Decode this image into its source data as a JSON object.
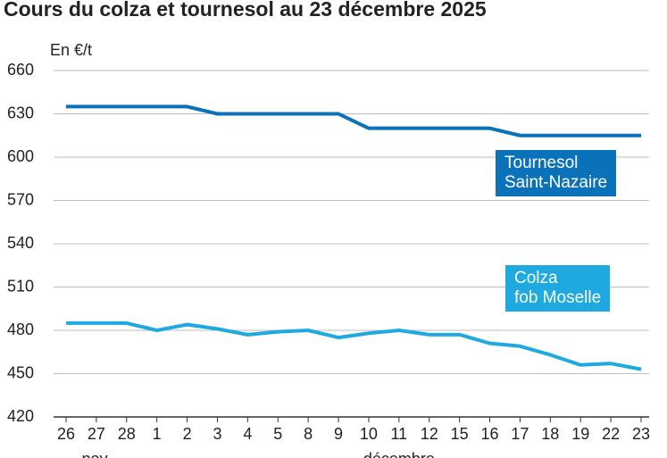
{
  "chart_data": {
    "type": "line",
    "title": "Cours du colza et tournesol au 23 décembre 2025",
    "y_label": "En €/t",
    "categories": [
      "26",
      "27",
      "28",
      "1",
      "2",
      "3",
      "4",
      "5",
      "8",
      "9",
      "10",
      "11",
      "12",
      "15",
      "16",
      "17",
      "18",
      "19",
      "22",
      "23"
    ],
    "months": [
      "nov.",
      "décembre"
    ],
    "series": [
      {
        "name": "Tournesol\nSaint-Nazaire",
        "color": "#0b72b9",
        "values": [
          635,
          635,
          635,
          635,
          635,
          630,
          630,
          630,
          630,
          630,
          620,
          620,
          620,
          620,
          620,
          615,
          615,
          615,
          615,
          615
        ]
      },
      {
        "name": "Colza\nfob Moselle",
        "color": "#1ea9e1",
        "values": [
          485,
          485,
          485,
          480,
          484,
          481,
          477,
          479,
          480,
          475,
          478,
          480,
          477,
          477,
          471,
          469,
          463,
          456,
          457,
          453
        ]
      }
    ],
    "ylim": [
      420,
      660
    ],
    "yticks": [
      420,
      450,
      480,
      510,
      540,
      570,
      600,
      630,
      660
    ],
    "grid": true
  }
}
